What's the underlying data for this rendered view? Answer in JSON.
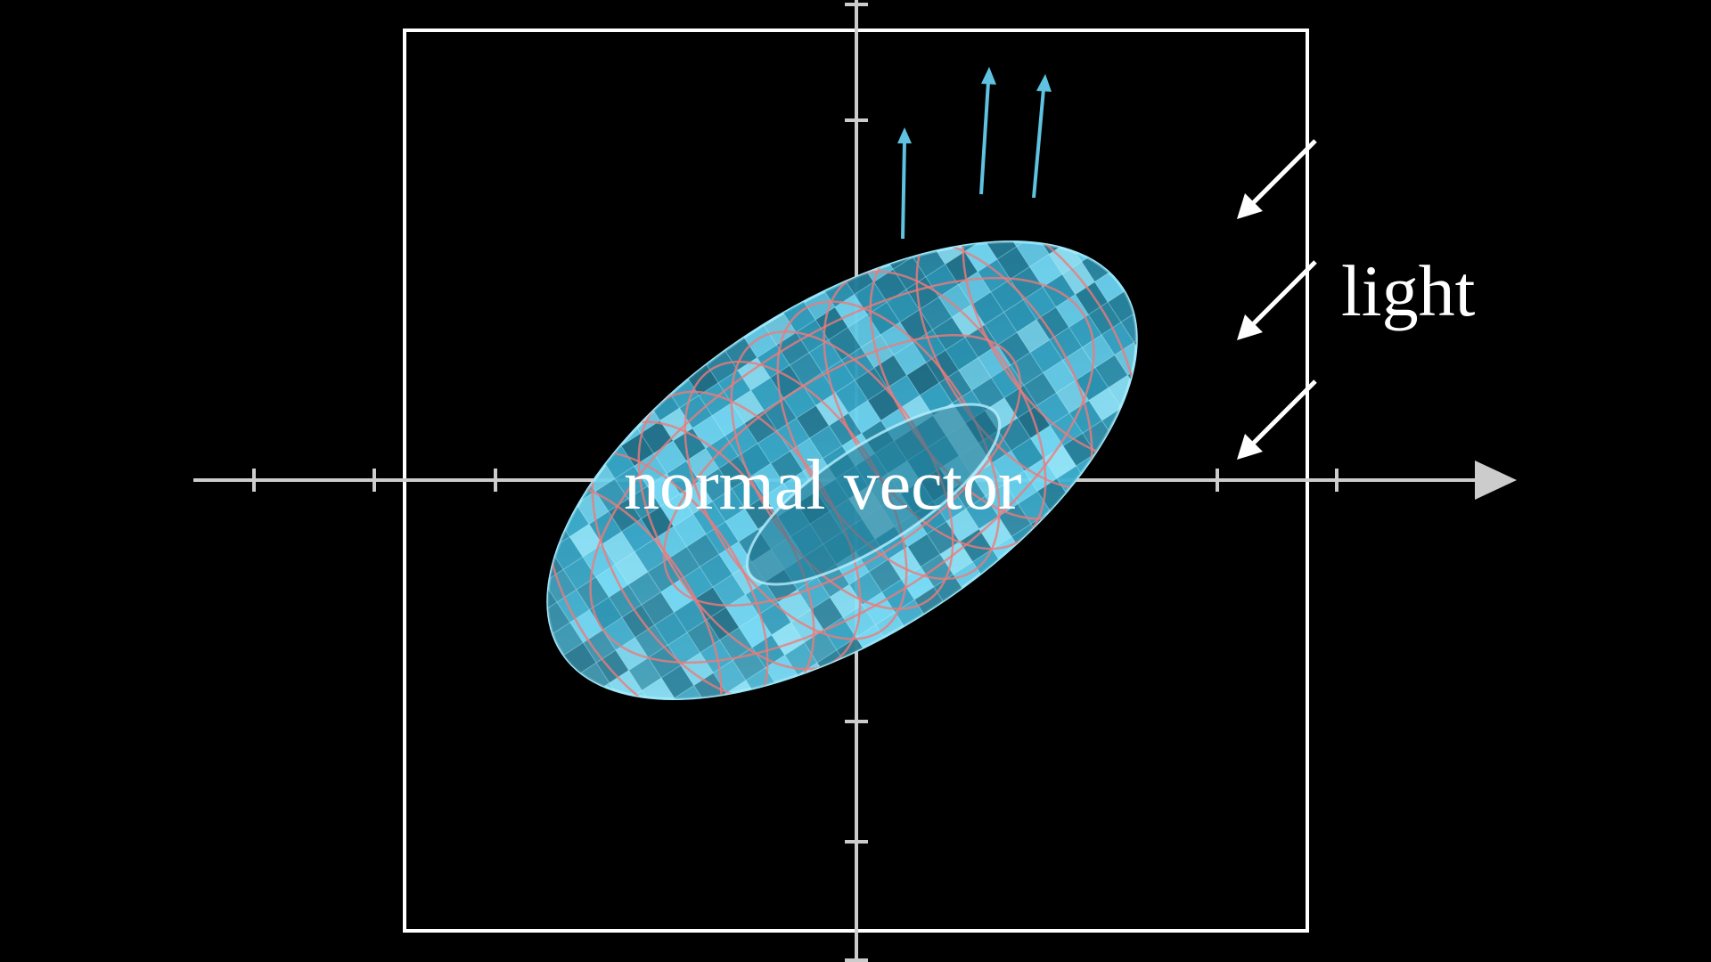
{
  "labels": {
    "normal_vector": "normal vector",
    "light": "light"
  },
  "scene": {
    "object": "torus",
    "axes": "x and y axes with tick marks",
    "normal_arrow_count": 3,
    "light_arrow_count": 3
  },
  "colors": {
    "background": "#000000",
    "frame": "#ffffff",
    "axis": "#cccccc",
    "torus_fill": "#5fcfee",
    "torus_dark": "#1d6e86",
    "torus_grid_line": "#ee7a7a",
    "normal_arrow": "#5ec2e0",
    "light_arrow": "#ffffff",
    "text": "#ffffff"
  }
}
